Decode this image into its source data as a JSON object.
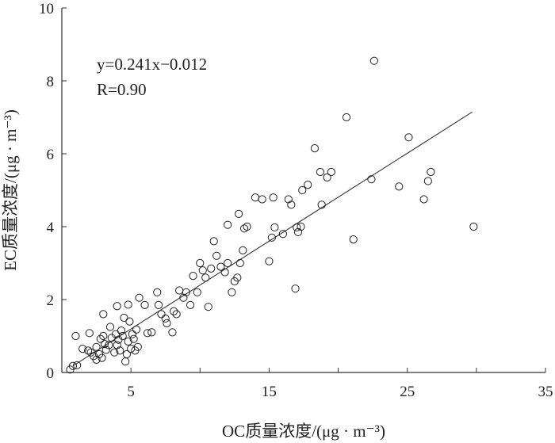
{
  "chart_data": {
    "type": "scatter",
    "xlabel": "OC质量浓度/(μg · m⁻³)",
    "ylabel": "EC质量浓度/(μg · m⁻³)",
    "xlim": [
      0,
      35
    ],
    "ylim": [
      0,
      10
    ],
    "x_ticks": [
      5,
      15,
      25,
      35
    ],
    "x_minor_ticks": [
      10,
      20,
      30
    ],
    "y_ticks": [
      0,
      2,
      4,
      6,
      8,
      10
    ],
    "x_tick_labels": [
      "5",
      "15",
      "25",
      "35"
    ],
    "y_tick_labels": [
      "0",
      "2",
      "4",
      "6",
      "8",
      "10"
    ],
    "grid": false,
    "marker": "open-circle",
    "fit_line": {
      "slope": 0.241,
      "intercept": -0.012,
      "x_range": [
        0.8,
        29.7
      ]
    },
    "annotation": {
      "equation": "y=0.241x−0.012",
      "r": "R=0.90"
    },
    "points": [
      [
        0.6,
        0.08
      ],
      [
        0.8,
        0.18
      ],
      [
        1.1,
        0.2
      ],
      [
        1.0,
        1.0
      ],
      [
        1.5,
        0.65
      ],
      [
        1.9,
        0.6
      ],
      [
        2.1,
        0.55
      ],
      [
        2.3,
        0.45
      ],
      [
        2.5,
        0.35
      ],
      [
        2.7,
        0.5
      ],
      [
        2.9,
        0.4
      ],
      [
        2.0,
        1.08
      ],
      [
        2.5,
        0.7
      ],
      [
        2.8,
        0.92
      ],
      [
        3.0,
        1.0
      ],
      [
        3.1,
        0.78
      ],
      [
        3.2,
        0.62
      ],
      [
        3.4,
        0.75
      ],
      [
        3.5,
        1.25
      ],
      [
        3.6,
        0.95
      ],
      [
        3.8,
        0.55
      ],
      [
        3.9,
        1.05
      ],
      [
        4.0,
        0.75
      ],
      [
        4.1,
        0.9
      ],
      [
        4.2,
        0.6
      ],
      [
        4.3,
        1.15
      ],
      [
        4.4,
        1.0
      ],
      [
        4.5,
        1.5
      ],
      [
        4.6,
        0.3
      ],
      [
        4.7,
        0.5
      ],
      [
        4.8,
        0.85
      ],
      [
        4.9,
        1.4
      ],
      [
        5.0,
        0.65
      ],
      [
        5.1,
        1.05
      ],
      [
        5.2,
        0.92
      ],
      [
        5.3,
        0.6
      ],
      [
        5.4,
        1.18
      ],
      [
        5.5,
        0.7
      ],
      [
        3.0,
        1.6
      ],
      [
        4.0,
        1.82
      ],
      [
        4.8,
        1.86
      ],
      [
        5.6,
        2.05
      ],
      [
        6.0,
        1.85
      ],
      [
        6.2,
        1.08
      ],
      [
        6.5,
        1.1
      ],
      [
        6.9,
        2.2
      ],
      [
        7.0,
        1.85
      ],
      [
        7.2,
        1.6
      ],
      [
        7.5,
        1.48
      ],
      [
        7.6,
        1.35
      ],
      [
        8.0,
        1.1
      ],
      [
        8.1,
        1.68
      ],
      [
        8.3,
        1.6
      ],
      [
        8.5,
        2.25
      ],
      [
        8.8,
        2.05
      ],
      [
        9.0,
        2.2
      ],
      [
        9.3,
        1.85
      ],
      [
        9.5,
        2.65
      ],
      [
        9.8,
        2.2
      ],
      [
        10.0,
        3.0
      ],
      [
        10.2,
        2.8
      ],
      [
        10.4,
        2.6
      ],
      [
        10.6,
        1.8
      ],
      [
        10.8,
        2.85
      ],
      [
        11.0,
        3.6
      ],
      [
        11.2,
        3.2
      ],
      [
        11.5,
        2.9
      ],
      [
        11.8,
        2.75
      ],
      [
        12.0,
        3.0
      ],
      [
        12.0,
        4.05
      ],
      [
        12.3,
        2.2
      ],
      [
        12.5,
        2.5
      ],
      [
        12.7,
        2.6
      ],
      [
        12.8,
        4.35
      ],
      [
        12.9,
        3.0
      ],
      [
        13.2,
        3.95
      ],
      [
        13.4,
        4.0
      ],
      [
        13.1,
        3.35
      ],
      [
        14.0,
        4.8
      ],
      [
        14.5,
        4.75
      ],
      [
        15.0,
        3.05
      ],
      [
        15.2,
        3.7
      ],
      [
        15.3,
        4.8
      ],
      [
        15.4,
        3.98
      ],
      [
        16.0,
        3.8
      ],
      [
        16.4,
        4.75
      ],
      [
        16.6,
        4.6
      ],
      [
        16.9,
        2.3
      ],
      [
        17.0,
        3.98
      ],
      [
        17.1,
        3.85
      ],
      [
        17.3,
        4.0
      ],
      [
        17.4,
        5.0
      ],
      [
        17.8,
        5.15
      ],
      [
        18.3,
        6.15
      ],
      [
        18.7,
        5.5
      ],
      [
        18.8,
        4.6
      ],
      [
        19.2,
        5.35
      ],
      [
        19.5,
        5.5
      ],
      [
        20.6,
        7.0
      ],
      [
        21.1,
        3.65
      ],
      [
        22.4,
        5.3
      ],
      [
        22.6,
        8.55
      ],
      [
        24.4,
        5.1
      ],
      [
        25.1,
        6.45
      ],
      [
        26.2,
        4.75
      ],
      [
        26.5,
        5.25
      ],
      [
        26.7,
        5.5
      ],
      [
        29.8,
        4.0
      ]
    ]
  }
}
